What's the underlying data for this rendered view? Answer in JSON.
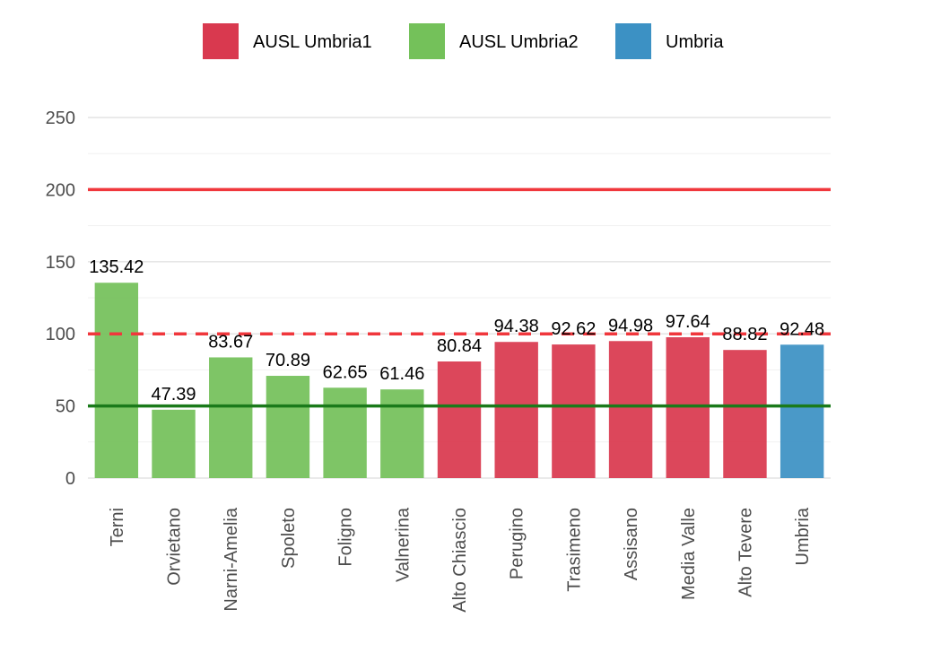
{
  "chart_data": {
    "type": "bar",
    "categories": [
      "Terni",
      "Orvietano",
      "Narni-Amelia",
      "Spoleto",
      "Foligno",
      "Valnerina",
      "Alto Chiascio",
      "Perugino",
      "Trasimeno",
      "Assisano",
      "Media Valle",
      "Alto Tevere",
      "Umbria"
    ],
    "values": [
      135.42,
      47.39,
      83.67,
      70.89,
      62.65,
      61.46,
      80.84,
      94.38,
      92.62,
      94.98,
      97.64,
      88.82,
      92.48
    ],
    "data_labels": [
      "135.42",
      "47.39",
      "83.67",
      "70.89",
      "62.65",
      "61.46",
      "80.84",
      "94.38",
      "92.62",
      "94.98",
      "97.64",
      "88.82",
      "92.48"
    ],
    "groups": [
      "AUSL Umbria2",
      "AUSL Umbria2",
      "AUSL Umbria2",
      "AUSL Umbria2",
      "AUSL Umbria2",
      "AUSL Umbria2",
      "AUSL Umbria1",
      "AUSL Umbria1",
      "AUSL Umbria1",
      "AUSL Umbria1",
      "AUSL Umbria1",
      "AUSL Umbria1",
      "Umbria"
    ],
    "legend": [
      {
        "name": "AUSL Umbria1",
        "color": "#d9394f"
      },
      {
        "name": "AUSL Umbria2",
        "color": "#74c15a"
      },
      {
        "name": "Umbria",
        "color": "#3c91c4"
      }
    ],
    "legend_position": "top",
    "ylim": [
      0,
      250
    ],
    "yticks": [
      "0",
      "50",
      "100",
      "150",
      "200",
      "250"
    ],
    "grid": true,
    "reference_lines": [
      {
        "value": 200,
        "style": "solid",
        "color": "#f0373c"
      },
      {
        "value": 100,
        "style": "dashed",
        "color": "#f0373c"
      },
      {
        "value": 50,
        "style": "solid",
        "color": "#1a7a1a"
      }
    ],
    "title": "",
    "xlabel": "",
    "ylabel": ""
  }
}
